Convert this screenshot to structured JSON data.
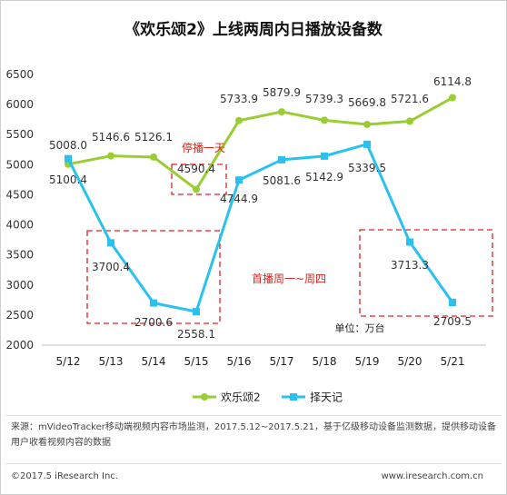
{
  "chart_data": {
    "type": "line",
    "title": "《欢乐颂2》上线两周内日播放设备数",
    "categories": [
      "5/12",
      "5/13",
      "5/14",
      "5/15",
      "5/16",
      "5/17",
      "5/18",
      "5/19",
      "5/20",
      "5/21"
    ],
    "series": [
      {
        "name": "欢乐颂2",
        "color": "#9acd32",
        "marker": "circle",
        "values": [
          5008.0,
          5146.6,
          5126.1,
          4590.4,
          5733.9,
          5879.9,
          5739.3,
          5669.8,
          5721.6,
          6114.8
        ],
        "labels": [
          "5008.0",
          "5146.6",
          "5126.1",
          "4590.4",
          "5733.9",
          "5879.9",
          "5739.3",
          "5669.8",
          "5721.6",
          "6114.8"
        ]
      },
      {
        "name": "择天记",
        "color": "#29c2f0",
        "marker": "square",
        "values": [
          5100.4,
          3700.4,
          2700.6,
          2558.1,
          4744.9,
          5081.6,
          5142.9,
          5339.5,
          3713.3,
          2709.5
        ],
        "labels": [
          "5100.4",
          "3700.4",
          "2700.6",
          "2558.1",
          "4744.9",
          "5081.6",
          "5142.9",
          "5339.5",
          "3713.3",
          "2709.5"
        ]
      }
    ],
    "ylim": [
      2000,
      6500
    ],
    "yticks": [
      2000,
      2500,
      3000,
      3500,
      4000,
      4500,
      5000,
      5500,
      6000,
      6500
    ],
    "grid": false,
    "legend_position": "bottom",
    "annotations": [
      {
        "text": "停播一天",
        "color": "#d9261c"
      },
      {
        "text": "首播周一~周四",
        "color": "#d9261c"
      },
      {
        "text": "单位：万台",
        "color": "#222222"
      }
    ]
  },
  "footer": {
    "source": "来源：mVideoTracker移动端视频内容市场监测，2017.5.12~2017.5.21，基于亿级移动设备监测数据，提供移动设备用户收看视频内容的数据",
    "copyright": "©2017.5 iResearch Inc.",
    "website": "www.iresearch.com.cn"
  }
}
